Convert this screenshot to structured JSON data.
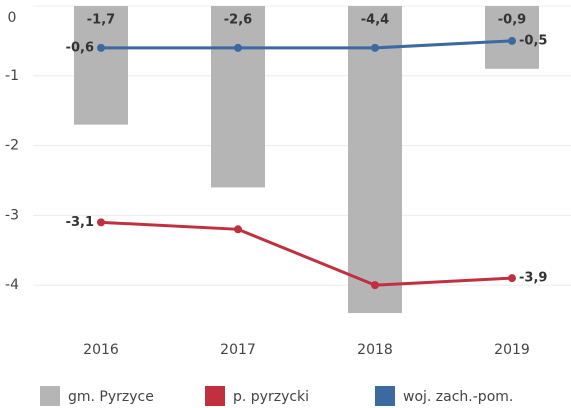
{
  "chart_data": {
    "type": "bar",
    "categories": [
      "2016",
      "2017",
      "2018",
      "2019"
    ],
    "series": [
      {
        "name": "gm. Pyrzyce",
        "type": "bar",
        "color": "#b5b5b5",
        "values": [
          -1.7,
          -2.6,
          -4.4,
          -0.9
        ],
        "value_labels": [
          "-1,7",
          "-2,6",
          "-4,4",
          "-0,9"
        ]
      },
      {
        "name": "p. pyrzycki",
        "type": "line",
        "color": "#c0303f",
        "values": [
          -3.1,
          -3.2,
          -4.0,
          -3.9
        ],
        "value_labels": [
          "-3,1",
          null,
          null,
          "-3,9"
        ]
      },
      {
        "name": "woj. zach.-pom.",
        "type": "line",
        "color": "#3a6aa0",
        "values": [
          -0.6,
          -0.6,
          -0.6,
          -0.5
        ],
        "value_labels": [
          "-0,6",
          null,
          null,
          "-0,5"
        ]
      }
    ],
    "ylim": [
      -4.6,
      0
    ],
    "yticks": [
      0,
      -1,
      -2,
      -3,
      -4
    ],
    "grid": true
  }
}
